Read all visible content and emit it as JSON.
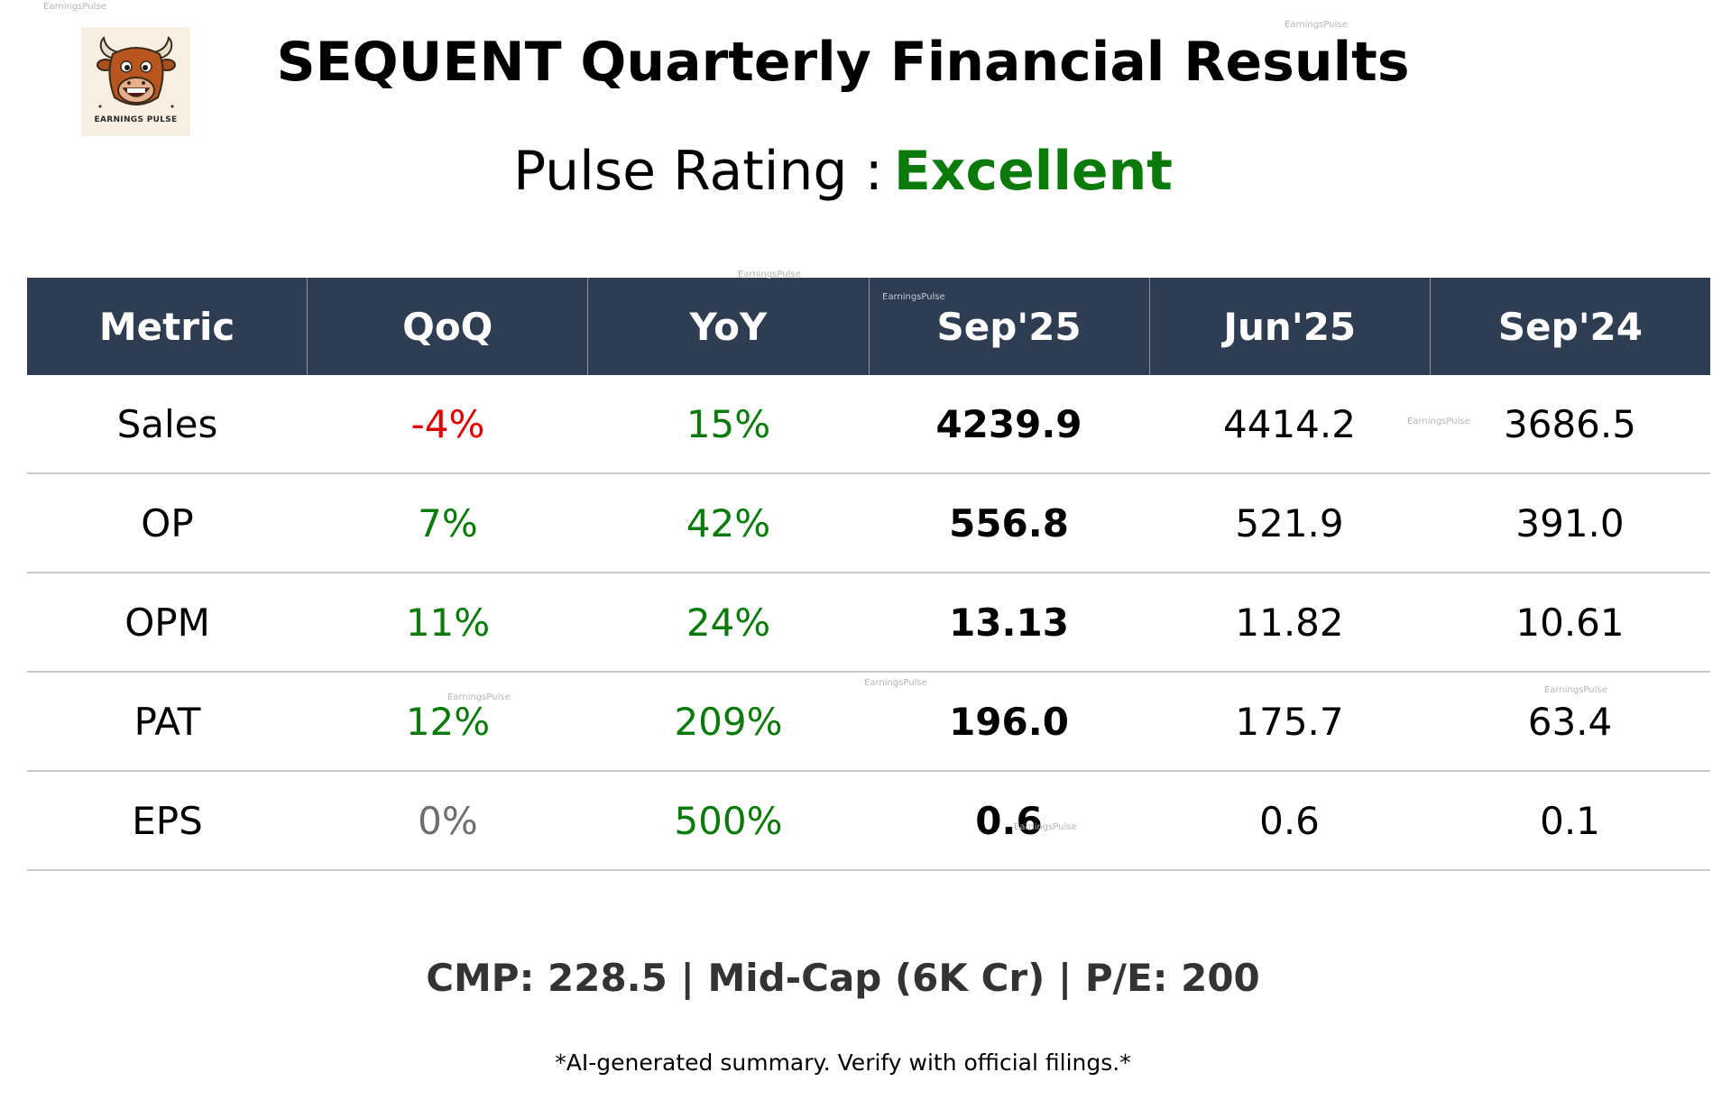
{
  "header": {
    "logo_text": "EARNINGS PULSE",
    "title": "SEQUENT Quarterly Financial Results",
    "rating_label": "Pulse Rating :",
    "rating_value": "Excellent"
  },
  "table": {
    "columns": [
      "Metric",
      "QoQ",
      "YoY",
      "Sep'25",
      "Jun'25",
      "Sep'24"
    ],
    "rows": [
      {
        "metric": "Sales",
        "qoq": "-4%",
        "yoy": "15%",
        "sep25": "4239.9",
        "jun25": "4414.2",
        "sep24": "3686.5"
      },
      {
        "metric": "OP",
        "qoq": "7%",
        "yoy": "42%",
        "sep25": "556.8",
        "jun25": "521.9",
        "sep24": "391.0"
      },
      {
        "metric": "OPM",
        "qoq": "11%",
        "yoy": "24%",
        "sep25": "13.13",
        "jun25": "11.82",
        "sep24": "10.61"
      },
      {
        "metric": "PAT",
        "qoq": "12%",
        "yoy": "209%",
        "sep25": "196.0",
        "jun25": "175.7",
        "sep24": "63.4"
      },
      {
        "metric": "EPS",
        "qoq": "0%",
        "yoy": "500%",
        "sep25": "0.6",
        "jun25": "0.6",
        "sep24": "0.1"
      }
    ]
  },
  "footer": {
    "summary": "CMP: 228.5 | Mid-Cap (6K Cr) | P/E: 200",
    "disclaimer": "*AI-generated summary. Verify with official filings.*"
  },
  "watermark": "EarningsPulse",
  "colors": {
    "header_bg": "#2e3d51",
    "positive": "#0a7a0a",
    "negative": "#e00000",
    "neutral": "#6e6e6e"
  }
}
